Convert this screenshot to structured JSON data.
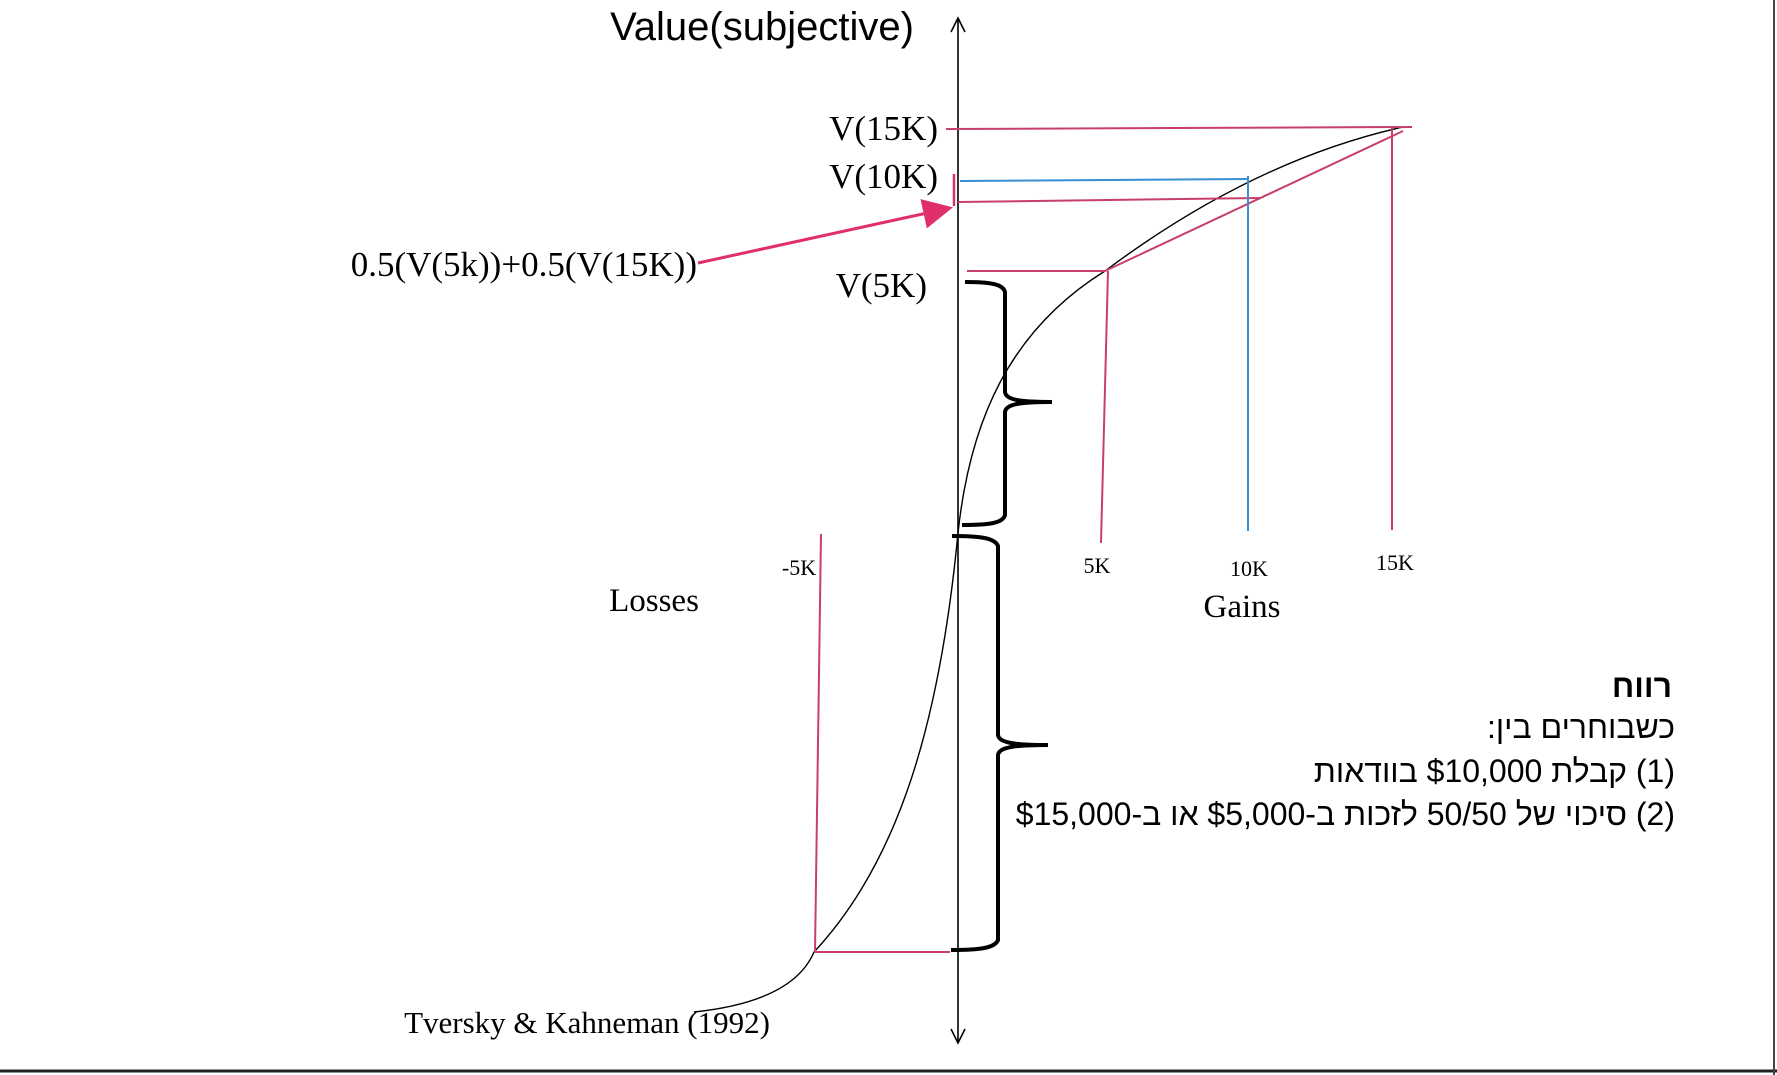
{
  "diagram": {
    "y_axis_label": "Value(subjective)",
    "value_labels": {
      "v15k": "V(15K)",
      "v10k": "V(10K)",
      "v5k": "V(5K)"
    },
    "expected_value_label": "0.5(V(5k))+0.5(V(15K))",
    "x_ticks": {
      "neg5k": "-5K",
      "k5": "5K",
      "k10": "10K",
      "k15": "15K"
    },
    "losses_label": "Losses",
    "gains_label": "Gains",
    "citation": "Tversky & Kahneman (1992)",
    "colors": {
      "pink": "#c8406a",
      "blue": "#3a8fd0",
      "arrow": "#e0306a",
      "curve": "#000000"
    }
  },
  "text_box": {
    "title": "רווח",
    "line1": "כשבוחרים בין:",
    "line2": "(1) קבלת $10,000 בוודאות",
    "line3": "(2) סיכוי של 50/50 לזכות ב-$5,000 או ב-$15,000"
  }
}
